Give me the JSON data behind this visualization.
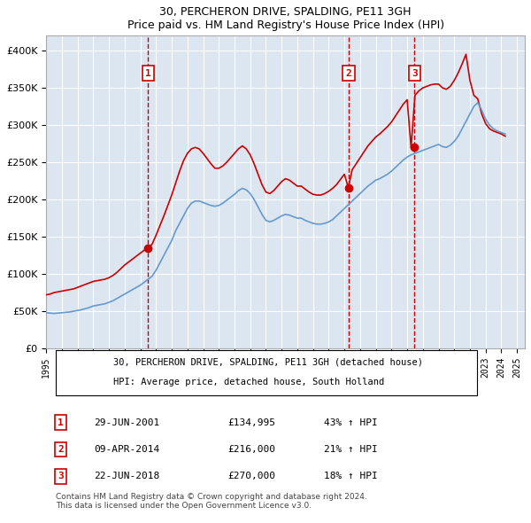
{
  "title": "30, PERCHERON DRIVE, SPALDING, PE11 3GH",
  "subtitle": "Price paid vs. HM Land Registry's House Price Index (HPI)",
  "ylim": [
    0,
    420000
  ],
  "yticks": [
    0,
    50000,
    100000,
    150000,
    200000,
    250000,
    300000,
    350000,
    400000
  ],
  "ytick_labels": [
    "£0",
    "£50K",
    "£100K",
    "£150K",
    "£200K",
    "£250K",
    "£300K",
    "£350K",
    "£400K"
  ],
  "xlim_start": 1995.0,
  "xlim_end": 2025.5,
  "bg_color": "#dce6f1",
  "plot_bg_color": "#dce6f1",
  "red_line_color": "#cc0000",
  "blue_line_color": "#6699cc",
  "grid_color": "#ffffff",
  "sale_events": [
    {
      "index": 1,
      "date": "29-JUN-2001",
      "price": 134995,
      "pct": "43%",
      "direction": "↑",
      "x": 2001.49
    },
    {
      "index": 2,
      "date": "09-APR-2014",
      "price": 216000,
      "pct": "21%",
      "direction": "↑",
      "x": 2014.27
    },
    {
      "index": 3,
      "date": "22-JUN-2018",
      "price": 270000,
      "pct": "18%",
      "direction": "↑",
      "x": 2018.47
    }
  ],
  "legend_line1": "30, PERCHERON DRIVE, SPALDING, PE11 3GH (detached house)",
  "legend_line2": "HPI: Average price, detached house, South Holland",
  "copyright": "Contains HM Land Registry data © Crown copyright and database right 2024.\nThis data is licensed under the Open Government Licence v3.0.",
  "hpi_data": {
    "years": [
      1995.0,
      1995.25,
      1995.5,
      1995.75,
      1996.0,
      1996.25,
      1996.5,
      1996.75,
      1997.0,
      1997.25,
      1997.5,
      1997.75,
      1998.0,
      1998.25,
      1998.5,
      1998.75,
      1999.0,
      1999.25,
      1999.5,
      1999.75,
      2000.0,
      2000.25,
      2000.5,
      2000.75,
      2001.0,
      2001.25,
      2001.5,
      2001.75,
      2002.0,
      2002.25,
      2002.5,
      2002.75,
      2003.0,
      2003.25,
      2003.5,
      2003.75,
      2004.0,
      2004.25,
      2004.5,
      2004.75,
      2005.0,
      2005.25,
      2005.5,
      2005.75,
      2006.0,
      2006.25,
      2006.5,
      2006.75,
      2007.0,
      2007.25,
      2007.5,
      2007.75,
      2008.0,
      2008.25,
      2008.5,
      2008.75,
      2009.0,
      2009.25,
      2009.5,
      2009.75,
      2010.0,
      2010.25,
      2010.5,
      2010.75,
      2011.0,
      2011.25,
      2011.5,
      2011.75,
      2012.0,
      2012.25,
      2012.5,
      2012.75,
      2013.0,
      2013.25,
      2013.5,
      2013.75,
      2014.0,
      2014.25,
      2014.5,
      2014.75,
      2015.0,
      2015.25,
      2015.5,
      2015.75,
      2016.0,
      2016.25,
      2016.5,
      2016.75,
      2017.0,
      2017.25,
      2017.5,
      2017.75,
      2018.0,
      2018.25,
      2018.5,
      2018.75,
      2019.0,
      2019.25,
      2019.5,
      2019.75,
      2020.0,
      2020.25,
      2020.5,
      2020.75,
      2021.0,
      2021.25,
      2021.5,
      2021.75,
      2022.0,
      2022.25,
      2022.5,
      2022.75,
      2023.0,
      2023.25,
      2023.5,
      2023.75,
      2024.0,
      2024.25
    ],
    "values": [
      48000,
      47500,
      47000,
      47500,
      48000,
      48500,
      49000,
      50000,
      51000,
      52000,
      53500,
      55000,
      57000,
      58000,
      59000,
      60000,
      62000,
      64000,
      67000,
      70000,
      73000,
      76000,
      79000,
      82000,
      85000,
      89000,
      93000,
      97000,
      105000,
      115000,
      125000,
      135000,
      145000,
      158000,
      168000,
      178000,
      188000,
      195000,
      198000,
      198000,
      196000,
      194000,
      192000,
      191000,
      192000,
      195000,
      199000,
      203000,
      207000,
      212000,
      215000,
      213000,
      208000,
      200000,
      190000,
      180000,
      172000,
      170000,
      172000,
      175000,
      178000,
      180000,
      179000,
      177000,
      175000,
      175000,
      172000,
      170000,
      168000,
      167000,
      167000,
      168000,
      170000,
      173000,
      178000,
      183000,
      188000,
      193000,
      198000,
      203000,
      208000,
      213000,
      218000,
      222000,
      226000,
      228000,
      231000,
      234000,
      238000,
      243000,
      248000,
      253000,
      257000,
      260000,
      262000,
      264000,
      266000,
      268000,
      270000,
      272000,
      274000,
      271000,
      270000,
      273000,
      278000,
      285000,
      295000,
      305000,
      315000,
      325000,
      330000,
      320000,
      308000,
      300000,
      295000,
      292000,
      290000,
      288000
    ]
  },
  "red_data": {
    "years": [
      1995.0,
      1995.25,
      1995.5,
      1995.75,
      1996.0,
      1996.25,
      1996.5,
      1996.75,
      1997.0,
      1997.25,
      1997.5,
      1997.75,
      1998.0,
      1998.25,
      1998.5,
      1998.75,
      1999.0,
      1999.25,
      1999.5,
      1999.75,
      2000.0,
      2000.25,
      2000.5,
      2000.75,
      2001.0,
      2001.25,
      2001.5,
      2001.75,
      2002.0,
      2002.25,
      2002.5,
      2002.75,
      2003.0,
      2003.25,
      2003.5,
      2003.75,
      2004.0,
      2004.25,
      2004.5,
      2004.75,
      2005.0,
      2005.25,
      2005.5,
      2005.75,
      2006.0,
      2006.25,
      2006.5,
      2006.75,
      2007.0,
      2007.25,
      2007.5,
      2007.75,
      2008.0,
      2008.25,
      2008.5,
      2008.75,
      2009.0,
      2009.25,
      2009.5,
      2009.75,
      2010.0,
      2010.25,
      2010.5,
      2010.75,
      2011.0,
      2011.25,
      2011.5,
      2011.75,
      2012.0,
      2012.25,
      2012.5,
      2012.75,
      2013.0,
      2013.25,
      2013.5,
      2013.75,
      2014.0,
      2014.25,
      2014.5,
      2014.75,
      2015.0,
      2015.25,
      2015.5,
      2015.75,
      2016.0,
      2016.25,
      2016.5,
      2016.75,
      2017.0,
      2017.25,
      2017.5,
      2017.75,
      2018.0,
      2018.25,
      2018.5,
      2018.75,
      2019.0,
      2019.25,
      2019.5,
      2019.75,
      2020.0,
      2020.25,
      2020.5,
      2020.75,
      2021.0,
      2021.25,
      2021.5,
      2021.75,
      2022.0,
      2022.25,
      2022.5,
      2022.75,
      2023.0,
      2023.25,
      2023.5,
      2023.75,
      2024.0,
      2024.25
    ],
    "values": [
      72000,
      73000,
      75000,
      76000,
      77000,
      78000,
      79000,
      80000,
      82000,
      84000,
      86000,
      88000,
      90000,
      91000,
      92000,
      93000,
      95000,
      98000,
      102000,
      107000,
      112000,
      116000,
      120000,
      124000,
      128000,
      132000,
      134995,
      140000,
      152000,
      165000,
      178000,
      192000,
      206000,
      222000,
      238000,
      252000,
      262000,
      268000,
      270000,
      268000,
      262000,
      255000,
      248000,
      242000,
      242000,
      245000,
      250000,
      256000,
      262000,
      268000,
      272000,
      268000,
      260000,
      248000,
      234000,
      220000,
      210000,
      208000,
      212000,
      218000,
      224000,
      228000,
      226000,
      222000,
      218000,
      218000,
      214000,
      210000,
      207000,
      206000,
      206000,
      208000,
      211000,
      215000,
      220000,
      227000,
      234000,
      216000,
      240000,
      248000,
      256000,
      264000,
      272000,
      278000,
      284000,
      288000,
      293000,
      298000,
      304000,
      312000,
      320000,
      328000,
      334000,
      270000,
      340000,
      346000,
      350000,
      352000,
      354000,
      355000,
      355000,
      350000,
      348000,
      352000,
      360000,
      370000,
      382000,
      395000,
      360000,
      340000,
      335000,
      315000,
      302000,
      295000,
      292000,
      290000,
      288000,
      285000
    ]
  }
}
